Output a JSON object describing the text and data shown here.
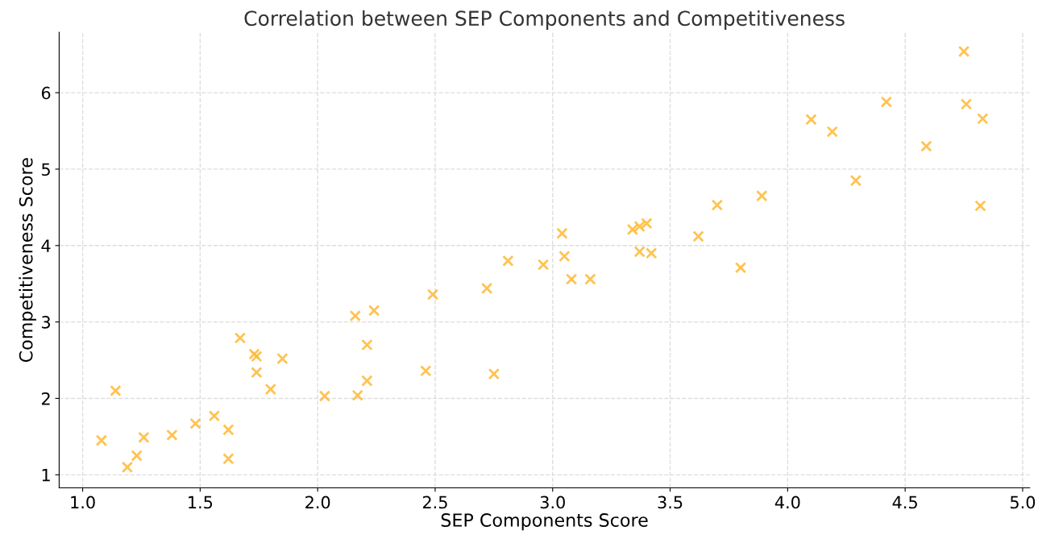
{
  "chart_data": {
    "type": "scatter",
    "title": "Correlation between SEP Components and Competitiveness",
    "xlabel": "SEP Components Score",
    "ylabel": "Competitiveness Score",
    "marker": "cross",
    "grid": true,
    "xlim": [
      0.9,
      5.03
    ],
    "ylim": [
      0.83,
      6.79
    ],
    "xticks": [
      {
        "value": 1.0,
        "label": "1.0"
      },
      {
        "value": 1.5,
        "label": "1.5"
      },
      {
        "value": 2.0,
        "label": "2.0"
      },
      {
        "value": 2.5,
        "label": "2.5"
      },
      {
        "value": 3.0,
        "label": "3.0"
      },
      {
        "value": 3.5,
        "label": "3.5"
      },
      {
        "value": 4.0,
        "label": "4.0"
      },
      {
        "value": 4.5,
        "label": "4.5"
      },
      {
        "value": 5.0,
        "label": "5.0"
      }
    ],
    "yticks": [
      1,
      2,
      3,
      4,
      5,
      6
    ],
    "series": [
      {
        "color": "#ffb833",
        "x": [
          1.08,
          1.14,
          1.19,
          1.23,
          1.26,
          1.38,
          1.48,
          1.56,
          1.62,
          1.62,
          1.67,
          1.73,
          1.74,
          1.74,
          1.8,
          1.85,
          2.03,
          2.16,
          2.17,
          2.21,
          2.21,
          2.24,
          2.46,
          2.49,
          2.72,
          2.75,
          2.81,
          2.96,
          3.04,
          3.05,
          3.08,
          3.16,
          3.34,
          3.37,
          3.4,
          3.37,
          3.42,
          3.62,
          3.7,
          3.8,
          3.89,
          4.1,
          4.19,
          4.29,
          4.42,
          4.59,
          4.75,
          4.76,
          4.82,
          4.83
        ],
        "values": [
          1.45,
          2.1,
          1.1,
          1.25,
          1.49,
          1.52,
          1.67,
          1.77,
          1.59,
          1.21,
          2.79,
          2.58,
          2.55,
          2.34,
          2.12,
          2.52,
          2.03,
          3.08,
          2.04,
          2.7,
          2.23,
          3.15,
          2.36,
          3.36,
          3.44,
          2.32,
          3.8,
          3.75,
          4.16,
          3.86,
          3.56,
          3.56,
          4.21,
          4.25,
          4.29,
          3.92,
          3.9,
          4.12,
          4.53,
          3.71,
          4.65,
          5.65,
          5.49,
          4.85,
          5.88,
          5.3,
          6.54,
          5.85,
          4.52,
          5.66
        ]
      }
    ]
  }
}
